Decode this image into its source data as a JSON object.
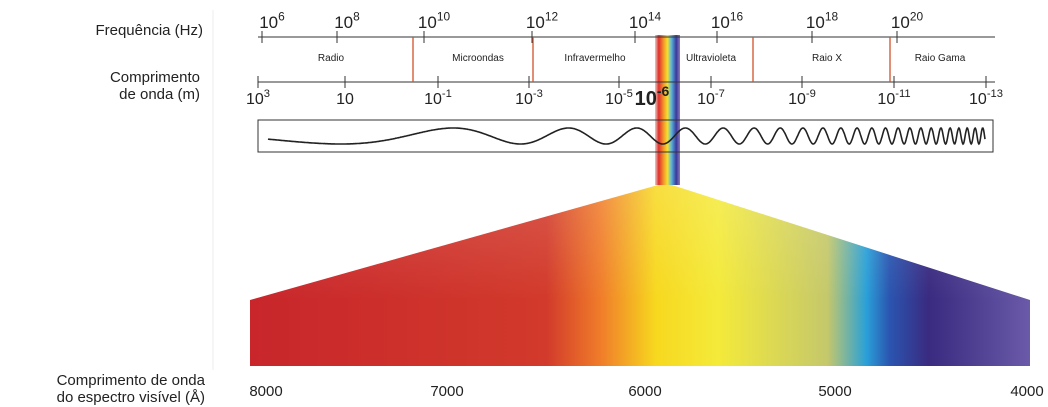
{
  "frequency_axis": {
    "label": "Frequência (Hz)",
    "ticks": [
      {
        "base": "10",
        "exp": "6"
      },
      {
        "base": "10",
        "exp": "8"
      },
      {
        "base": "10",
        "exp": "10"
      },
      {
        "base": "10",
        "exp": "12"
      },
      {
        "base": "10",
        "exp": "14"
      },
      {
        "base": "10",
        "exp": "16"
      },
      {
        "base": "10",
        "exp": "18"
      },
      {
        "base": "10",
        "exp": "20"
      }
    ]
  },
  "bands": [
    "Radio",
    "Microondas",
    "Infravermelho",
    "Ultravioleta",
    "Raio X",
    "Raio Gama"
  ],
  "wavelength_axis": {
    "label": [
      "Comprimento",
      "de onda (m)"
    ],
    "ticks": [
      {
        "base": "10",
        "exp": "3"
      },
      {
        "base": "10"
      },
      {
        "base": "10",
        "exp": "-1"
      },
      {
        "base": "10",
        "exp": "-3"
      },
      {
        "base": "10",
        "exp": "-5"
      },
      {
        "base": "10",
        "exp": "-7"
      },
      {
        "base": "10",
        "exp": "-9"
      },
      {
        "base": "10",
        "exp": "-11"
      },
      {
        "base": "10",
        "exp": "-13"
      }
    ],
    "visible_marker": {
      "base": "10",
      "exp": "-6"
    }
  },
  "visible_spectrum": {
    "label": [
      "Comprimento de onda",
      "do espectro visível (Å)"
    ],
    "ticks": [
      "8000",
      "7000",
      "6000",
      "5000",
      "4000"
    ]
  }
}
